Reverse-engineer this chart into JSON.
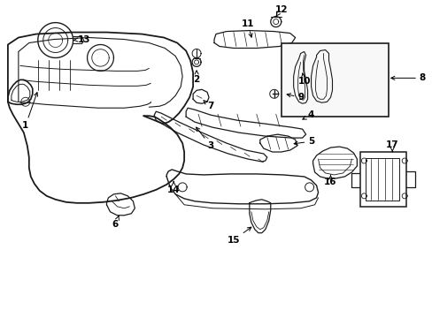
{
  "bg_color": "#ffffff",
  "line_color": "#1a1a1a",
  "fig_width": 4.89,
  "fig_height": 3.6,
  "dpi": 100,
  "label_fontsize": 7.5,
  "arrow_lw": 0.7,
  "part_lw": 0.9
}
